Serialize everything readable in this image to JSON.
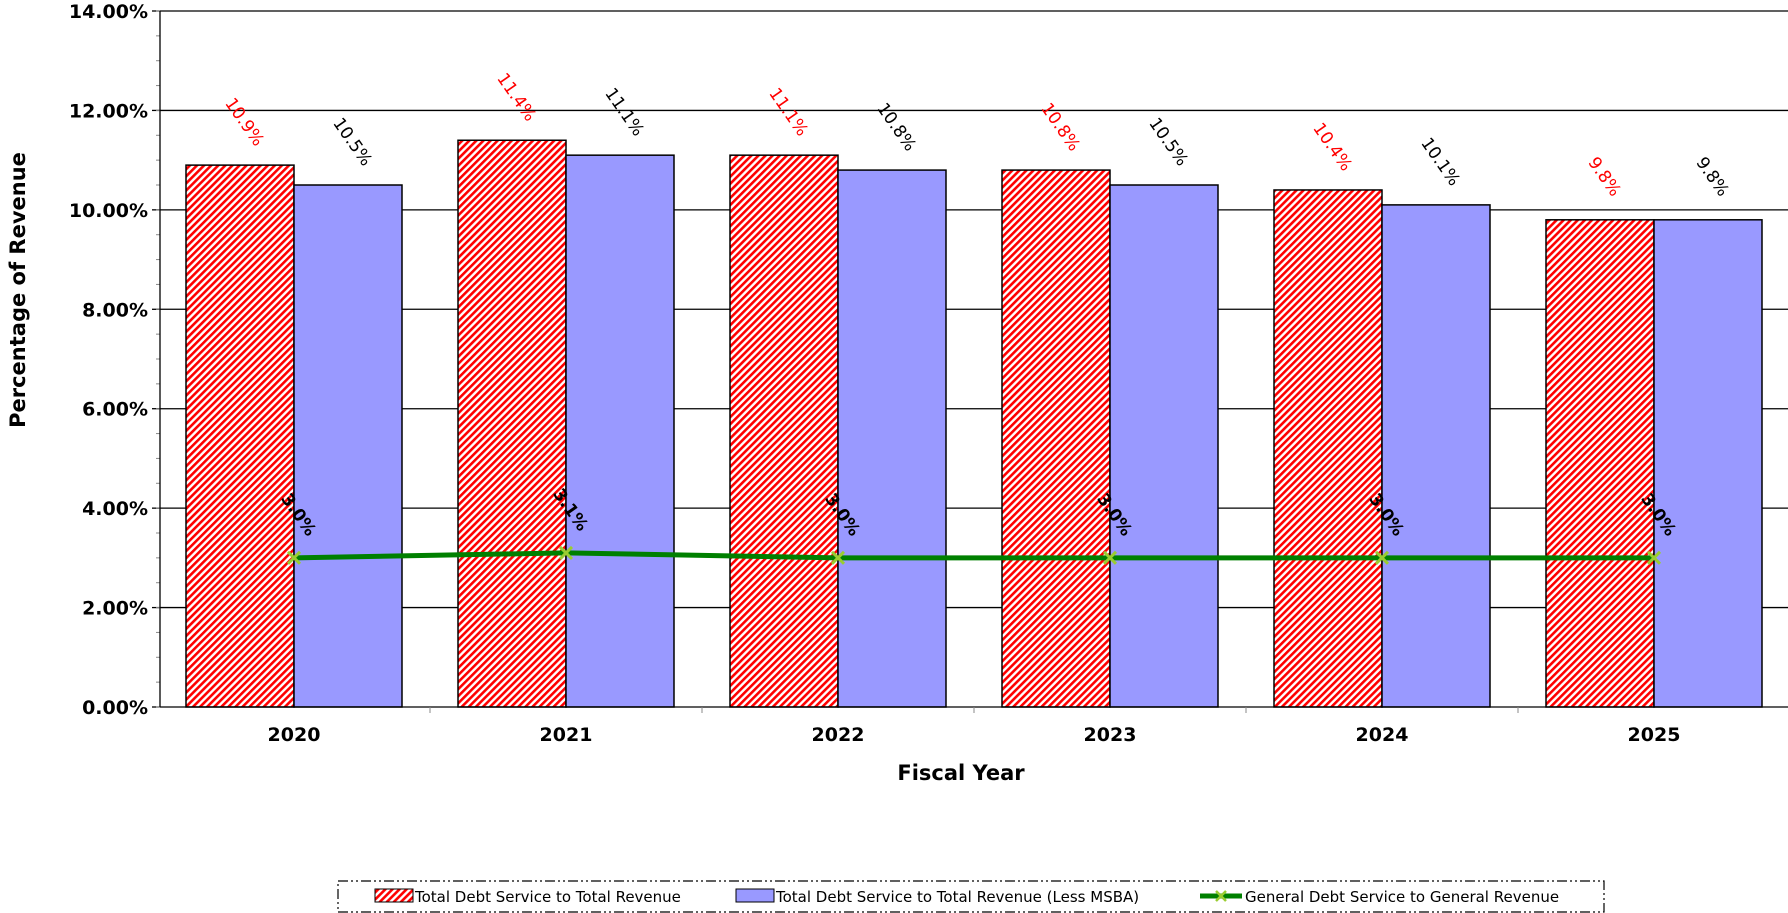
{
  "chart_data": {
    "type": "bar",
    "xlabel": "Fiscal Year",
    "ylabel": "Percentage of Revenue",
    "ylim": [
      0,
      0.14
    ],
    "ytick_step": 0.02,
    "y_minor_step": 0.005,
    "yticks": [
      "0.00%",
      "2.00%",
      "4.00%",
      "6.00%",
      "8.00%",
      "10.00%",
      "12.00%",
      "14.00%"
    ],
    "categories": [
      "2020",
      "2021",
      "2022",
      "2023",
      "2024",
      "2025"
    ],
    "grid": "horizontal major gridlines",
    "legend_position": "bottom",
    "series": [
      {
        "name": "Total Debt Service to Total Revenue",
        "kind": "bar",
        "pattern": "red diagonal hatch",
        "color": "#ff0000",
        "label_color": "#ff0000",
        "values": [
          0.109,
          0.114,
          0.111,
          0.108,
          0.104,
          0.098
        ],
        "labels": [
          "10.9%",
          "11.4%",
          "11.1%",
          "10.8%",
          "10.4%",
          "9.8%"
        ]
      },
      {
        "name": "Total Debt Service to Total Revenue (Less MSBA)",
        "kind": "bar",
        "color": "#9999ff",
        "label_color": "#000000",
        "values": [
          0.105,
          0.111,
          0.108,
          0.105,
          0.101,
          0.098
        ],
        "labels": [
          "10.5%",
          "11.1%",
          "10.8%",
          "10.5%",
          "10.1%",
          "9.8%"
        ]
      },
      {
        "name": "General Debt Service to General Revenue",
        "kind": "line",
        "color": "#008000",
        "marker": "x",
        "marker_color": "#9acd32",
        "values": [
          0.03,
          0.031,
          0.03,
          0.03,
          0.03,
          0.03
        ],
        "labels": [
          "3.0%",
          "3.1%",
          "3.0%",
          "3.0%",
          "3.0%",
          "3.0%"
        ]
      }
    ]
  }
}
